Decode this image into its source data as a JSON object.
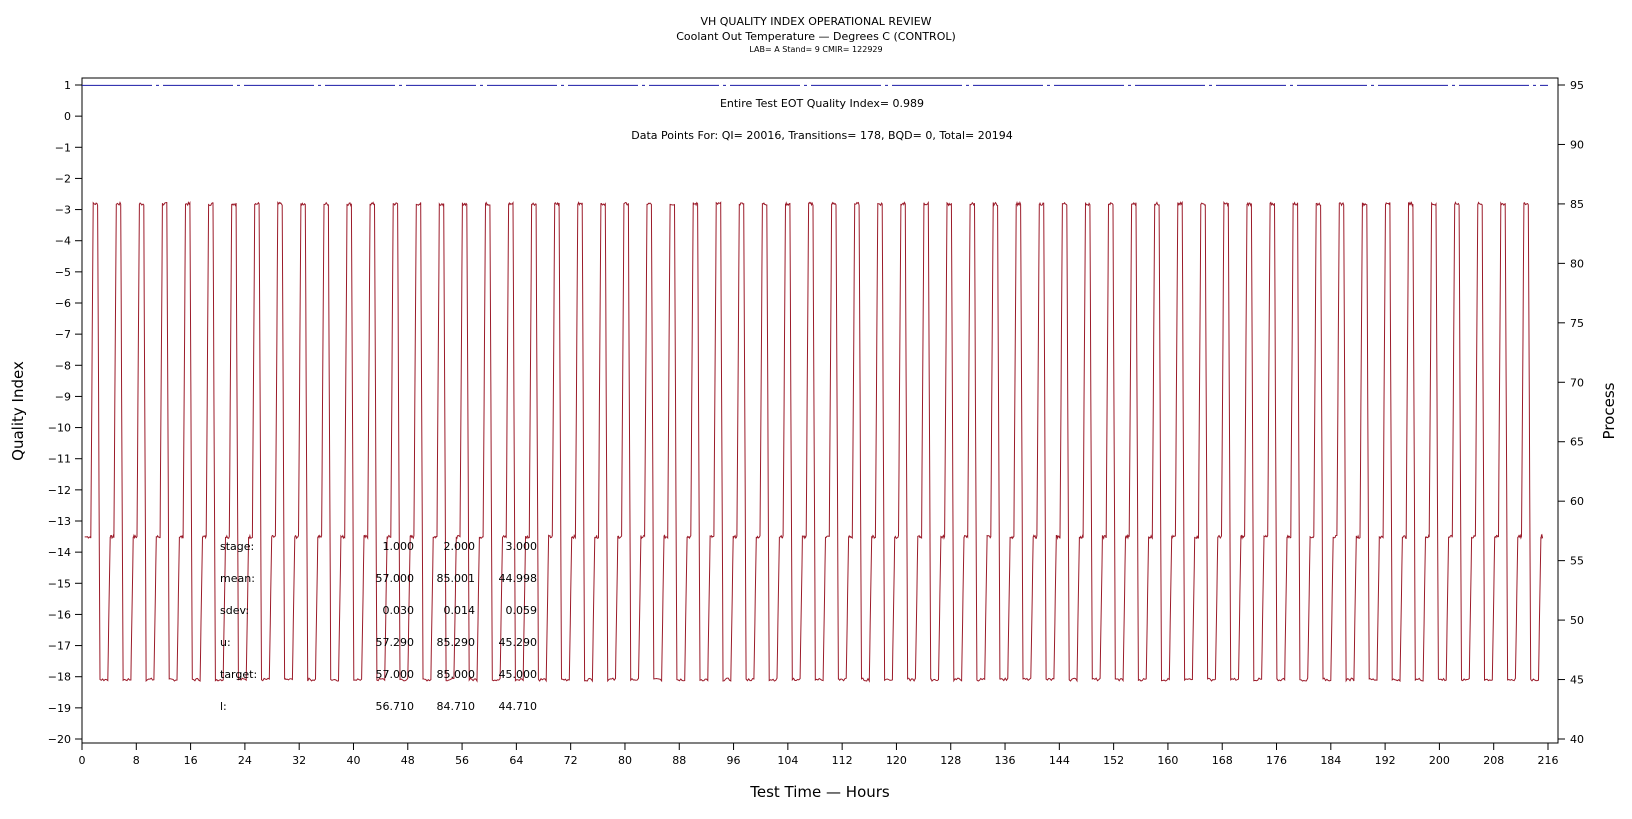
{
  "chart_data": {
    "type": "line",
    "title": "VH QUALITY INDEX OPERATIONAL REVIEW",
    "subtitle": "Coolant Out Temperature — Degrees C (CONTROL)",
    "subtitle2": "LAB= A Stand= 9 CMIR= 122929",
    "xlabel": "Test Time — Hours",
    "ylabel_left": "Quality Index",
    "ylabel_right": "Process",
    "xlim": [
      0,
      216
    ],
    "ylim_left": [
      -20,
      1
    ],
    "ylim_right": [
      40,
      95
    ],
    "x_ticks": [
      0,
      8,
      16,
      24,
      32,
      40,
      48,
      56,
      64,
      72,
      80,
      88,
      96,
      104,
      112,
      120,
      128,
      136,
      144,
      152,
      160,
      168,
      176,
      184,
      192,
      200,
      208,
      216
    ],
    "y_ticks_left": [
      1,
      0,
      -1,
      -2,
      -3,
      -4,
      -5,
      -6,
      -7,
      -8,
      -9,
      -10,
      -11,
      -12,
      -13,
      -14,
      -15,
      -16,
      -17,
      -18,
      -19,
      -20
    ],
    "y_ticks_right": [
      95,
      90,
      85,
      80,
      75,
      70,
      65,
      60,
      55,
      50,
      45,
      40
    ],
    "annotations": {
      "qi_text": "Entire Test EOT Quality Index=   0.989",
      "points_text": "Data Points For: QI= 20016, Transitions=   178, BQD=     0, Total= 20194"
    },
    "quality_index_series": {
      "name": "Quality Index",
      "axis": "left",
      "color": "#1a1aa6",
      "style": "dash-dot",
      "value": 0.989
    },
    "process_series": {
      "name": "Process",
      "axis": "right",
      "color": "#9b1b2a",
      "cycle_hours": 4,
      "stage_sequence": [
        {
          "stage": 1,
          "level": 57.0,
          "hours": 0.9
        },
        {
          "stage": 2,
          "level": 85.0,
          "hours": 1.0
        },
        {
          "stage": 3,
          "level": 45.0,
          "hours": 1.5
        }
      ],
      "start_hour": 0.4,
      "end_hour": 215.2
    },
    "stats_table": {
      "rows": [
        {
          "label": "stage:",
          "values": [
            "1.000",
            "2.000",
            "3.000"
          ]
        },
        {
          "label": "mean:",
          "values": [
            "57.000",
            "85.001",
            "44.998"
          ]
        },
        {
          "label": "sdev:",
          "values": [
            "0.030",
            "0.014",
            "0.059"
          ]
        },
        {
          "label": "u:",
          "values": [
            "57.290",
            "85.290",
            "45.290"
          ]
        },
        {
          "label": "target:",
          "values": [
            "57.000",
            "85.000",
            "45.000"
          ]
        },
        {
          "label": "l:",
          "values": [
            "56.710",
            "84.710",
            "44.710"
          ]
        }
      ]
    }
  }
}
